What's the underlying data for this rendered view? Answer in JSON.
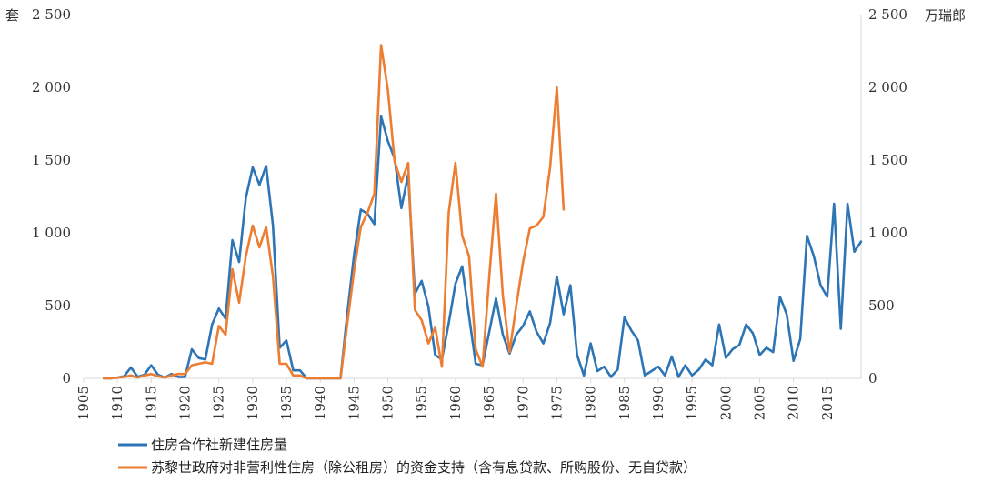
{
  "chart_data": {
    "type": "line",
    "left_unit": "套",
    "right_unit": "万瑞郎",
    "ylim": [
      0,
      2500
    ],
    "y_ticks": [
      0,
      500,
      1000,
      1500,
      2000,
      2500
    ],
    "y_tick_labels": [
      "0",
      "500",
      "1 000",
      "1 500",
      "2 000",
      "2 500"
    ],
    "xlim": [
      1905,
      2020
    ],
    "x_ticks": [
      1905,
      1910,
      1915,
      1920,
      1925,
      1930,
      1935,
      1940,
      1945,
      1950,
      1955,
      1960,
      1965,
      1970,
      1975,
      1980,
      1985,
      1990,
      1995,
      2000,
      2005,
      2010,
      2015
    ],
    "x_tick_labels": [
      "1905",
      "1910",
      "1915",
      "1920",
      "1925",
      "1930",
      "1935",
      "1940",
      "1945",
      "1950",
      "1955",
      "1960",
      "1965",
      "1970",
      "1975",
      "1980",
      "1985",
      "1990",
      "1995",
      "2000",
      "2005",
      "2010",
      "2015"
    ],
    "colors": {
      "blue": "#2e75b6",
      "orange": "#ed7d31",
      "axis": "#d9d9d9"
    },
    "series": [
      {
        "name": "住房合作社新建住房量",
        "axis": "left",
        "color": "#2e75b6",
        "x": [
          1908,
          1909,
          1910,
          1911,
          1912,
          1913,
          1914,
          1915,
          1916,
          1917,
          1918,
          1919,
          1920,
          1921,
          1922,
          1923,
          1924,
          1925,
          1926,
          1927,
          1928,
          1929,
          1930,
          1931,
          1932,
          1933,
          1934,
          1935,
          1936,
          1937,
          1938,
          1939,
          1940,
          1941,
          1942,
          1943,
          1944,
          1945,
          1946,
          1947,
          1948,
          1949,
          1950,
          1951,
          1952,
          1953,
          1954,
          1955,
          1956,
          1957,
          1958,
          1959,
          1960,
          1961,
          1962,
          1963,
          1964,
          1965,
          1966,
          1967,
          1968,
          1969,
          1970,
          1971,
          1972,
          1973,
          1974,
          1975,
          1976,
          1977,
          1978,
          1979,
          1980,
          1981,
          1982,
          1983,
          1984,
          1985,
          1986,
          1987,
          1988,
          1989,
          1990,
          1991,
          1992,
          1993,
          1994,
          1995,
          1996,
          1997,
          1998,
          1999,
          2000,
          2001,
          2002,
          2003,
          2004,
          2005,
          2006,
          2007,
          2008,
          2009,
          2010,
          2011,
          2012,
          2013,
          2014,
          2015,
          2016,
          2017,
          2018,
          2019,
          2020
        ],
        "y": [
          0,
          0,
          5,
          15,
          75,
          10,
          25,
          90,
          25,
          5,
          30,
          10,
          10,
          200,
          140,
          130,
          370,
          480,
          410,
          950,
          800,
          1240,
          1450,
          1330,
          1460,
          1050,
          210,
          260,
          55,
          55,
          0,
          0,
          0,
          0,
          0,
          0,
          450,
          850,
          1160,
          1130,
          1060,
          1800,
          1630,
          1510,
          1170,
          1400,
          580,
          670,
          490,
          160,
          130,
          380,
          650,
          770,
          430,
          100,
          90,
          320,
          550,
          300,
          170,
          300,
          360,
          460,
          320,
          240,
          380,
          700,
          440,
          640,
          160,
          20,
          240,
          50,
          80,
          10,
          60,
          420,
          330,
          260,
          20,
          50,
          80,
          20,
          150,
          10,
          90,
          20,
          60,
          130,
          90,
          370,
          140,
          200,
          230,
          370,
          310,
          160,
          210,
          180,
          560,
          440,
          120,
          270,
          980,
          840,
          640,
          560,
          1200,
          340,
          1200,
          870,
          940
        ]
      },
      {
        "name": "苏黎世政府对非营利性住房（除公租房）的资金支持（含有息贷款、所购股份、无自贷款）",
        "axis": "right",
        "color": "#ed7d31",
        "x": [
          1908,
          1909,
          1910,
          1911,
          1912,
          1913,
          1914,
          1915,
          1916,
          1917,
          1918,
          1919,
          1920,
          1921,
          1922,
          1923,
          1924,
          1925,
          1926,
          1927,
          1928,
          1929,
          1930,
          1931,
          1932,
          1933,
          1934,
          1935,
          1936,
          1937,
          1938,
          1939,
          1940,
          1941,
          1942,
          1943,
          1944,
          1945,
          1946,
          1947,
          1948,
          1949,
          1950,
          1951,
          1952,
          1953,
          1954,
          1955,
          1956,
          1957,
          1958,
          1959,
          1960,
          1961,
          1962,
          1963,
          1964,
          1965,
          1966,
          1967,
          1968,
          1969,
          1970,
          1971,
          1972,
          1973,
          1974,
          1975,
          1976
        ],
        "y": [
          0,
          0,
          5,
          10,
          20,
          5,
          20,
          30,
          15,
          5,
          20,
          30,
          30,
          90,
          100,
          110,
          100,
          360,
          300,
          750,
          520,
          840,
          1050,
          900,
          1040,
          700,
          100,
          100,
          20,
          20,
          0,
          0,
          0,
          0,
          0,
          0,
          380,
          740,
          1040,
          1140,
          1270,
          2290,
          1980,
          1490,
          1350,
          1480,
          470,
          400,
          240,
          350,
          80,
          1140,
          1480,
          980,
          840,
          200,
          80,
          700,
          1270,
          570,
          180,
          500,
          800,
          1030,
          1050,
          1110,
          1450,
          2000,
          1160
        ]
      }
    ],
    "legend_position": "bottom-left"
  }
}
